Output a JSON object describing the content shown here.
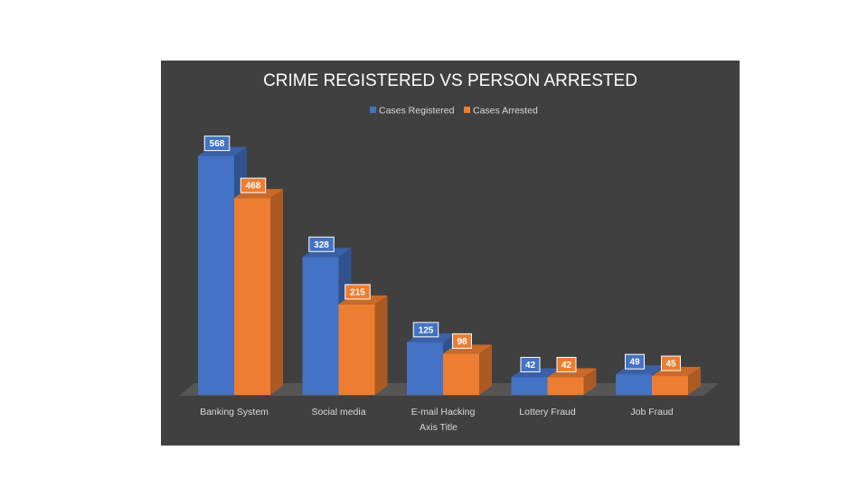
{
  "chart_data": {
    "type": "bar",
    "title": "CRIME REGISTERED VS PERSON ARRESTED",
    "xlabel": "Axis Title",
    "ylabel": "",
    "categories": [
      "Banking System",
      "Social media",
      "E-mail Hacking",
      "Lottery Fraud",
      "Job Fraud"
    ],
    "series": [
      {
        "name": "Cases Registered",
        "values": [
          568,
          328,
          125,
          42,
          49
        ],
        "color": "#4472C4"
      },
      {
        "name": "Cases Arrested",
        "values": [
          468,
          215,
          98,
          42,
          45
        ],
        "color": "#ED7D31"
      }
    ],
    "ylim": [
      0,
      600
    ],
    "grid": false,
    "legend_position": "top",
    "style": "3d-clustered-column",
    "background": "#404040"
  }
}
